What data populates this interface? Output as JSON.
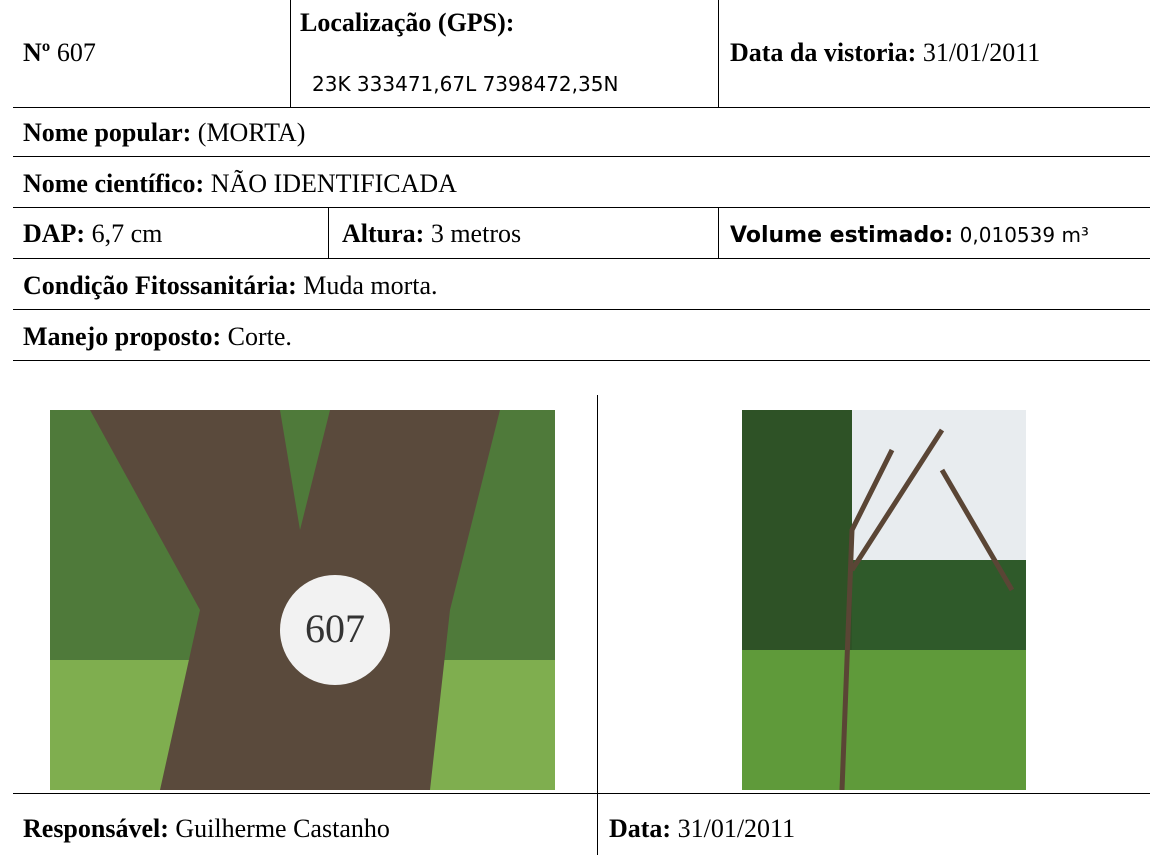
{
  "record": {
    "number_label": "Nº",
    "number": "607",
    "gps_label": "Localização (GPS):",
    "gps": "23K  333471,67L  7398472,35N",
    "inspection_date_label": "Data da vistoria:",
    "inspection_date": "31/01/2011",
    "popular_name_label": "Nome popular:",
    "popular_name": "(MORTA)",
    "scientific_name_label": "Nome científico:",
    "scientific_name": "NÃO IDENTIFICADA",
    "dap_label": "DAP:",
    "dap": "6,7 cm",
    "height_label": "Altura:",
    "height": "3 metros",
    "volume_label": "Volume estimado:",
    "volume": "0,010539 m³",
    "condition_label": "Condição Fitossanitária:",
    "condition": "Muda morta.",
    "management_label": "Manejo proposto:",
    "management": "Corte.",
    "responsible_label": "Responsável:",
    "responsible": "Guilherme Castanho",
    "date_label": "Data:",
    "date": "31/01/2011"
  }
}
